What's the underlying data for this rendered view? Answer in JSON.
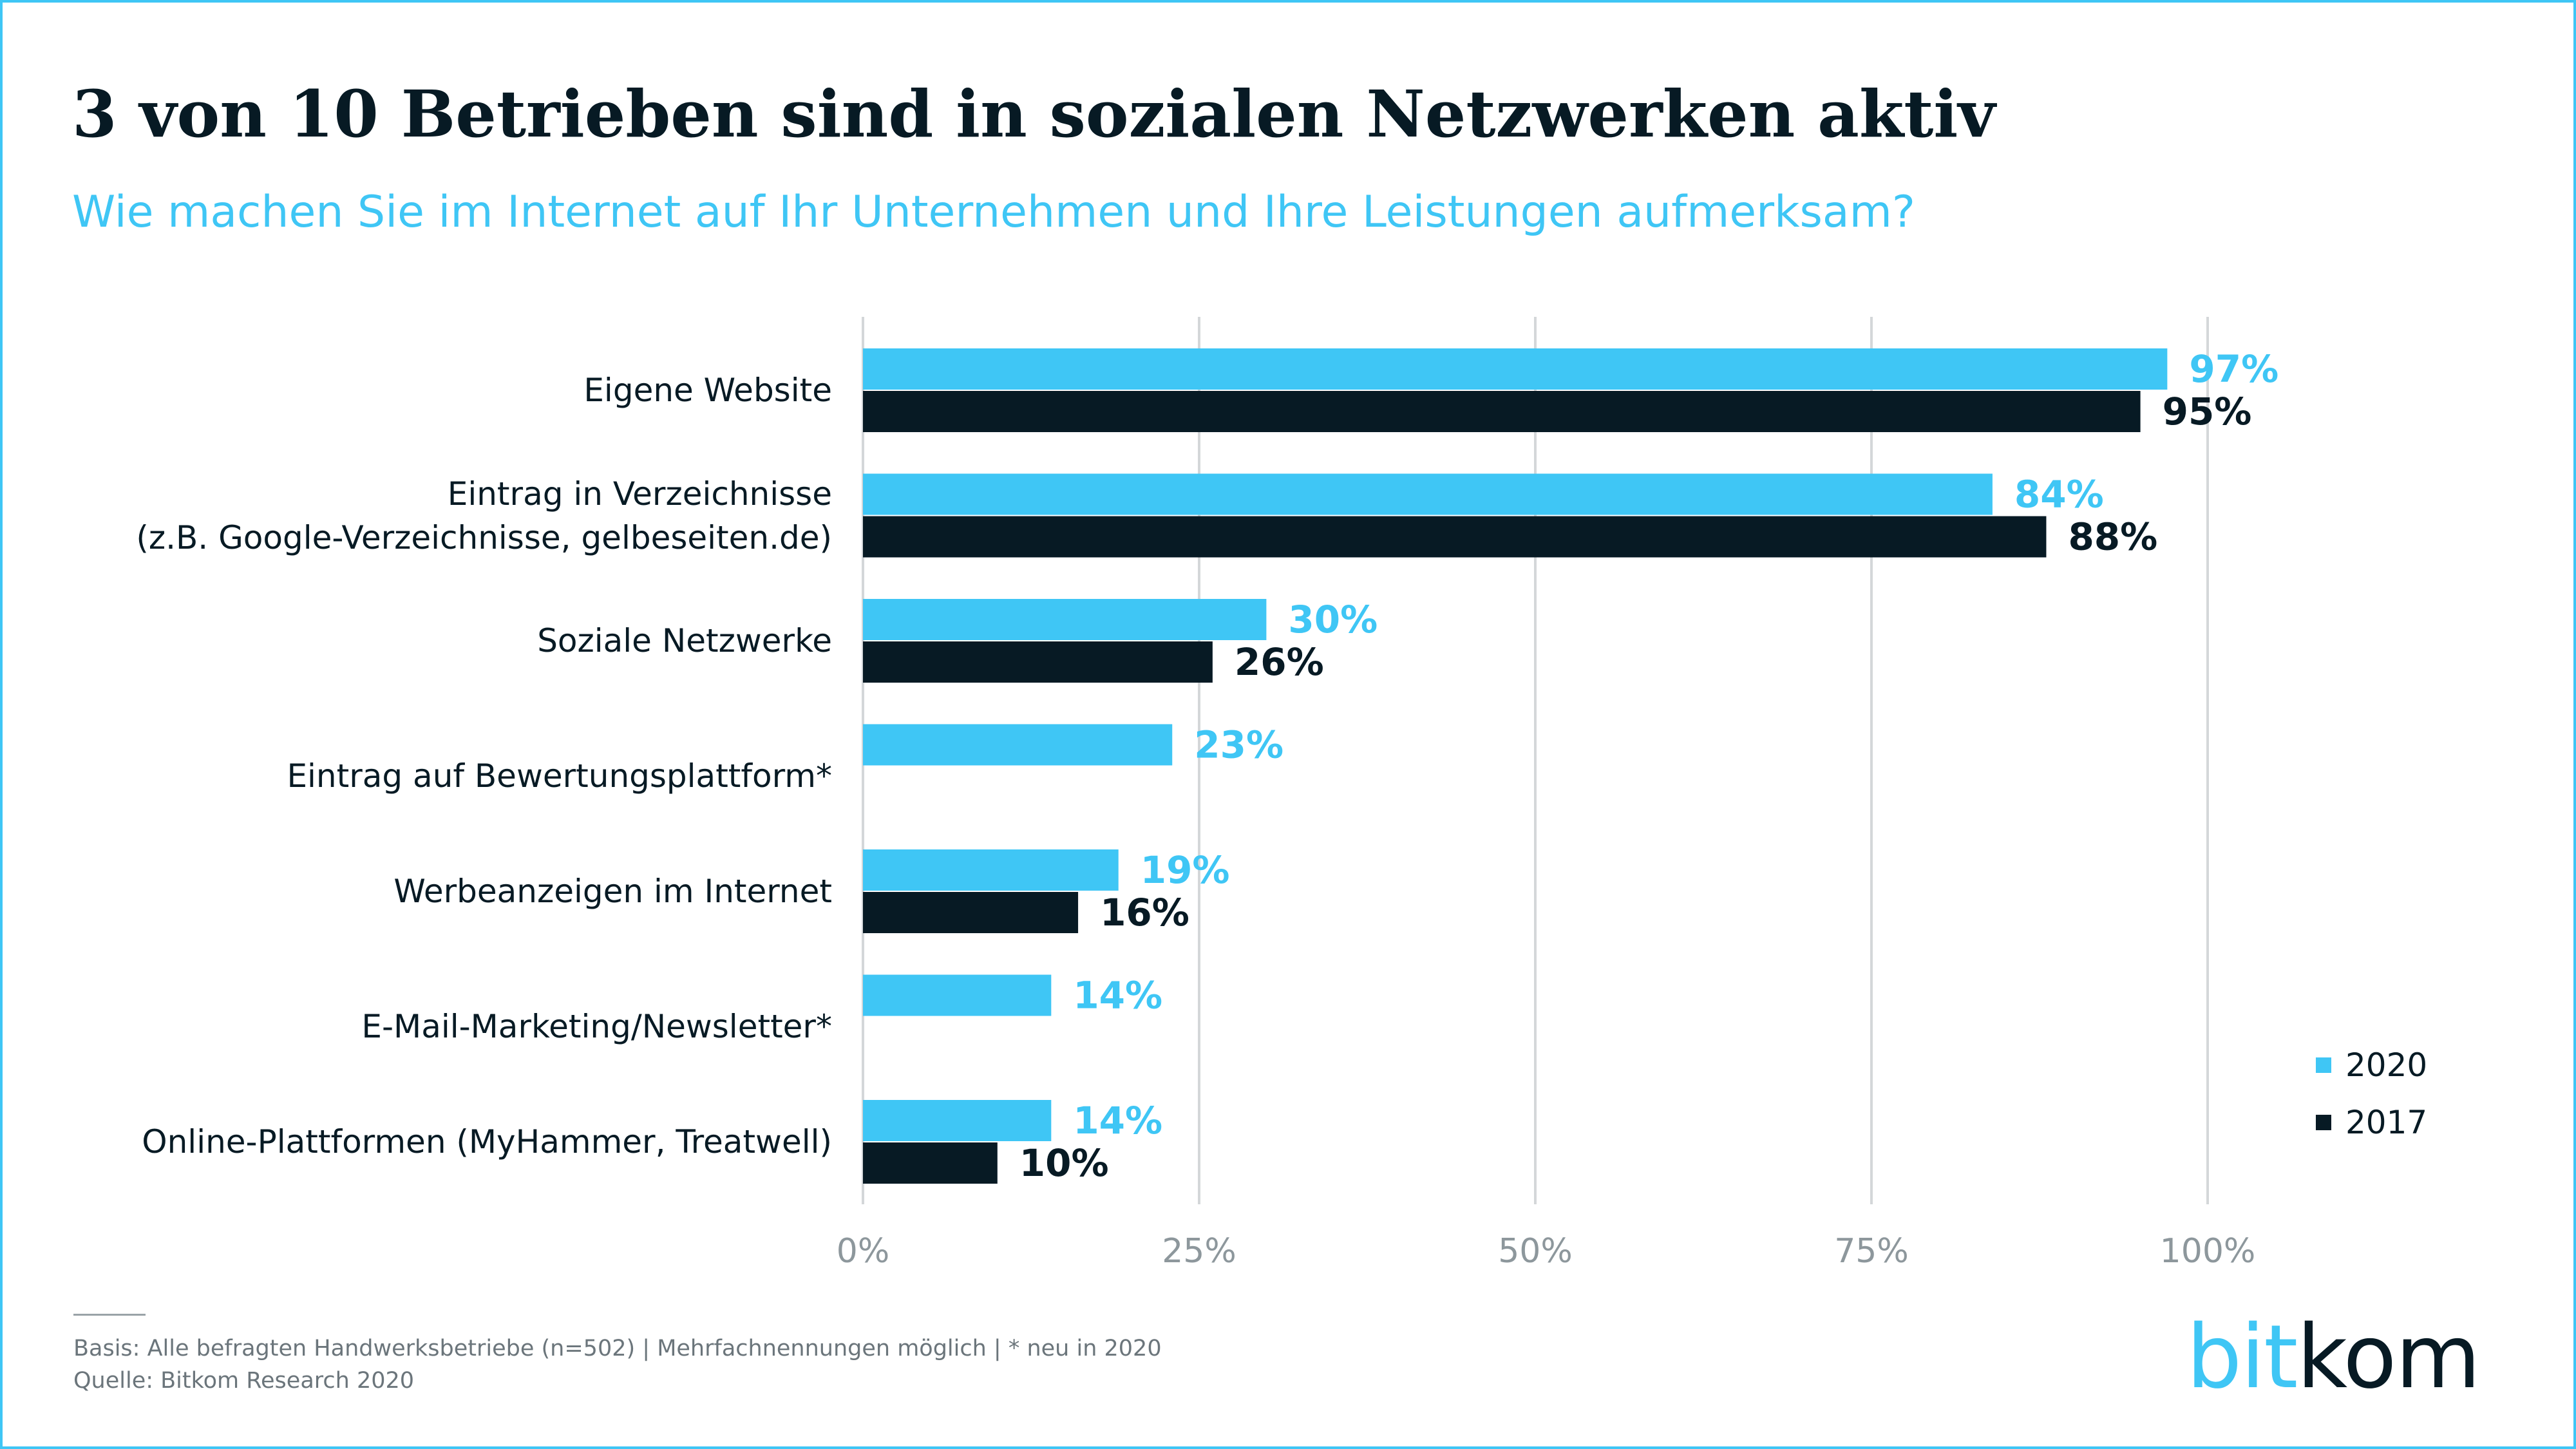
{
  "title": "3 von 10 Betrieben sind in sozialen Netzwerken aktiv",
  "subtitle": "Wie machen Sie im Internet auf Ihr Unternehmen und Ihre Leistungen aufmerksam?",
  "colors": {
    "series_2020": "#3fc6f5",
    "series_2017": "#071a24",
    "grid": "#d4d7d9",
    "axis_text": "#8d979c"
  },
  "chart_data": {
    "type": "bar",
    "orientation": "horizontal",
    "categories": [
      [
        "Eigene Website"
      ],
      [
        "Eintrag in Verzeichnisse",
        "(z.B. Google-Verzeichnisse, gelbeseiten.de)"
      ],
      [
        "Soziale Netzwerke"
      ],
      [
        "Eintrag auf Bewertungsplattform*"
      ],
      [
        "Werbeanzeigen im Internet"
      ],
      [
        "E-Mail-Marketing/Newsletter*"
      ],
      [
        "Online-Plattformen (MyHammer, Treatwell)"
      ]
    ],
    "series": [
      {
        "name": "2020",
        "values": [
          97,
          84,
          30,
          23,
          19,
          14,
          14
        ],
        "labels": [
          "97%",
          "84%",
          "30%",
          "23%",
          "19%",
          "14%",
          "14%"
        ]
      },
      {
        "name": "2017",
        "values": [
          95,
          88,
          26,
          null,
          16,
          null,
          10
        ],
        "labels": [
          "95%",
          "88%",
          "26%",
          "",
          "16%",
          "",
          "10%"
        ]
      }
    ],
    "xlim": [
      0,
      100
    ],
    "xticks": [
      0,
      25,
      50,
      75,
      100
    ],
    "xtick_labels": [
      "0%",
      "25%",
      "50%",
      "75%",
      "100%"
    ],
    "grid": true,
    "legend_position": "bottom-right"
  },
  "footnote": {
    "basis": "Basis: Alle befragten Handwerksbetriebe (n=502) | Mehrfachnennungen möglich | * neu in 2020",
    "source": "Quelle: Bitkom Research 2020"
  },
  "logo": {
    "part1": "bit",
    "part2": "kom"
  }
}
